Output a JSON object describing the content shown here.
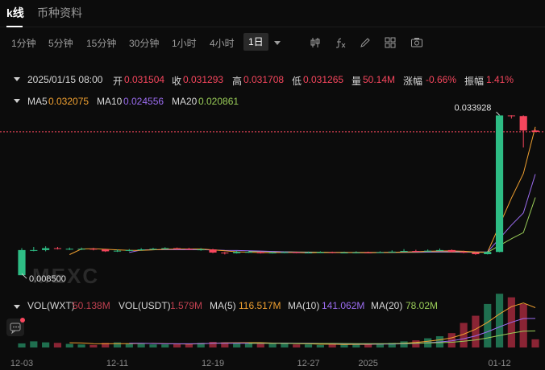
{
  "tabs": {
    "active": "k线",
    "other": "币种资料"
  },
  "timeframes": [
    "1分钟",
    "5分钟",
    "15分钟",
    "30分钟",
    "1小时",
    "4小时"
  ],
  "active_timeframe": "1日",
  "tools": [
    "candle-type-icon",
    "indicator-fx-icon",
    "draw-pen-icon",
    "layout-grid-icon",
    "camera-icon"
  ],
  "info": {
    "datetime": "2025/01/15 08:00",
    "open_label": "开",
    "open": "0.031504",
    "close_label": "收",
    "close": "0.031293",
    "high_label": "高",
    "high": "0.031708",
    "low_label": "低",
    "low": "0.031265",
    "vol_label": "量",
    "vol": "50.14M",
    "change_label": "涨幅",
    "change": "-0.66%",
    "amp_label": "振幅",
    "amp": "1.41%"
  },
  "ma": {
    "ma5_label": "MA5",
    "ma5": "0.032075",
    "ma10_label": "MA10",
    "ma10": "0.024556",
    "ma20_label": "MA20",
    "ma20": "0.020861"
  },
  "volume_legend": {
    "vol_wxt_label": "VOL(WXT)",
    "vol_wxt": "50.138M",
    "vol_usdt_label": "VOL(USDT)",
    "vol_usdt": "1.579M",
    "ma5_label": "MA(5)",
    "ma5": "116.517M",
    "ma10_label": "MA(10)",
    "ma10": "141.062M",
    "ma20_label": "MA(20)",
    "ma20": "78.02M"
  },
  "price_markers": {
    "high": "0.033928",
    "low": "0.008500"
  },
  "watermark": "MEXC",
  "x_axis_labels": [
    "12-03",
    "12-11",
    "12-19",
    "12-27",
    "2025",
    "01-12"
  ],
  "colors": {
    "up": "#2ebd85",
    "down": "#f6465d",
    "ma5": "#f0a030",
    "ma10": "#9b6cf0",
    "ma20": "#9acd58",
    "vol_up": "#1f6f4f",
    "vol_down": "#8a2434"
  },
  "chart_data": {
    "type": "candlestick",
    "dates": [
      "12-03",
      "12-04",
      "12-05",
      "12-06",
      "12-07",
      "12-08",
      "12-09",
      "12-10",
      "12-11",
      "12-12",
      "12-13",
      "12-14",
      "12-15",
      "12-16",
      "12-17",
      "12-18",
      "12-19",
      "12-20",
      "12-21",
      "12-22",
      "12-23",
      "12-24",
      "12-25",
      "12-26",
      "12-27",
      "12-28",
      "12-29",
      "12-30",
      "12-31",
      "01-01",
      "01-02",
      "01-03",
      "01-04",
      "01-05",
      "01-06",
      "01-07",
      "01-08",
      "01-09",
      "01-10",
      "01-11",
      "01-12",
      "01-13",
      "01-14",
      "01-15"
    ],
    "open": [
      0.0085,
      0.0125,
      0.0125,
      0.0128,
      0.0127,
      0.0127,
      0.0127,
      0.0126,
      0.0123,
      0.0124,
      0.0125,
      0.0126,
      0.0127,
      0.0128,
      0.0127,
      0.0126,
      0.0126,
      0.0121,
      0.012,
      0.0122,
      0.0122,
      0.012,
      0.0121,
      0.01215,
      0.0121,
      0.0121,
      0.01215,
      0.0121,
      0.0121,
      0.01212,
      0.01208,
      0.01215,
      0.01225,
      0.01235,
      0.0123,
      0.0124,
      0.0125,
      0.0122,
      0.0121,
      0.01185,
      0.0122,
      0.0339,
      0.0338,
      0.0315
    ],
    "close": [
      0.0125,
      0.0125,
      0.0128,
      0.0127,
      0.0127,
      0.0127,
      0.0126,
      0.0123,
      0.0124,
      0.0125,
      0.0126,
      0.0127,
      0.0128,
      0.0127,
      0.0126,
      0.0126,
      0.0121,
      0.012,
      0.0122,
      0.0122,
      0.012,
      0.0121,
      0.01215,
      0.0121,
      0.0121,
      0.01215,
      0.0121,
      0.0121,
      0.01212,
      0.01208,
      0.01215,
      0.01225,
      0.01235,
      0.0123,
      0.0124,
      0.0125,
      0.0122,
      0.0121,
      0.01185,
      0.0122,
      0.0339,
      0.0338,
      0.0315,
      0.03129
    ],
    "high": [
      0.0128,
      0.013,
      0.0131,
      0.013,
      0.0129,
      0.0129,
      0.01285,
      0.0127,
      0.0126,
      0.01265,
      0.0128,
      0.01285,
      0.01295,
      0.0129,
      0.01285,
      0.0128,
      0.0127,
      0.0122,
      0.0124,
      0.01235,
      0.0123,
      0.01225,
      0.0123,
      0.01225,
      0.01225,
      0.0123,
      0.01225,
      0.01225,
      0.0123,
      0.01225,
      0.0123,
      0.01245,
      0.01265,
      0.01255,
      0.0126,
      0.01275,
      0.0126,
      0.0124,
      0.01225,
      0.01235,
      0.03393,
      0.03393,
      0.03392,
      0.03171
    ],
    "low": [
      0.0085,
      0.0123,
      0.0123,
      0.0126,
      0.0125,
      0.0125,
      0.01245,
      0.0122,
      0.0122,
      0.0123,
      0.0124,
      0.0125,
      0.0126,
      0.01255,
      0.0125,
      0.0124,
      0.012,
      0.0118,
      0.01195,
      0.01205,
      0.01195,
      0.01195,
      0.012,
      0.012,
      0.012,
      0.01205,
      0.012,
      0.012,
      0.012,
      0.012,
      0.01205,
      0.0121,
      0.0122,
      0.0122,
      0.01225,
      0.01235,
      0.0121,
      0.012,
      0.01175,
      0.0118,
      0.01215,
      0.0334,
      0.0288,
      0.03127
    ],
    "volume": [
      8,
      12,
      10,
      9,
      7,
      6,
      5,
      9,
      10,
      8,
      7,
      6,
      6,
      8,
      7,
      9,
      11,
      10,
      9,
      8,
      9,
      7,
      8,
      6,
      6,
      5,
      7,
      6,
      7,
      6,
      8,
      9,
      12,
      14,
      18,
      22,
      28,
      48,
      62,
      85,
      105,
      98,
      85,
      16
    ],
    "ma5": [
      null,
      null,
      null,
      null,
      0.01178,
      0.01268,
      0.0127,
      0.01262,
      0.01254,
      0.01246,
      0.01246,
      0.01254,
      0.01262,
      0.01266,
      0.01268,
      0.01266,
      0.01254,
      0.01238,
      0.01222,
      0.01216,
      0.0121,
      0.0121,
      0.01211,
      0.01211,
      0.01208,
      0.01211,
      0.01212,
      0.01212,
      0.01211,
      0.01211,
      0.01211,
      0.01214,
      0.01219,
      0.01223,
      0.01231,
      0.01236,
      0.01237,
      0.01231,
      0.01221,
      0.01217,
      0.01646,
      0.02077,
      0.02467,
      0.03207
    ],
    "ma10": [
      null,
      null,
      null,
      null,
      null,
      null,
      null,
      null,
      null,
      0.01212,
      0.01253,
      0.01255,
      0.01256,
      0.01256,
      0.01256,
      0.01256,
      0.01251,
      0.01245,
      0.01243,
      0.0124,
      0.01234,
      0.01228,
      0.01222,
      0.01217,
      0.01213,
      0.0121,
      0.01211,
      0.01211,
      0.01211,
      0.01211,
      0.01212,
      0.01213,
      0.01215,
      0.01217,
      0.0122,
      0.01222,
      0.01223,
      0.01223,
      0.0122,
      0.0122,
      0.01432,
      0.01647,
      0.01841,
      0.02456
    ],
    "ma20": [
      null,
      null,
      null,
      null,
      null,
      null,
      null,
      null,
      null,
      null,
      null,
      null,
      null,
      null,
      null,
      null,
      null,
      null,
      null,
      0.0123,
      0.01226,
      0.01225,
      0.01223,
      0.0122,
      0.01218,
      0.01216,
      0.01214,
      0.01211,
      0.01209,
      0.01208,
      0.0121,
      0.01211,
      0.01213,
      0.01214,
      0.01216,
      0.01218,
      0.01217,
      0.01216,
      0.01215,
      0.01214,
      0.01323,
      0.0143,
      0.01527,
      0.02086
    ],
    "last_price": 0.031293,
    "high_marker": 0.033928,
    "low_marker": 0.0085
  }
}
